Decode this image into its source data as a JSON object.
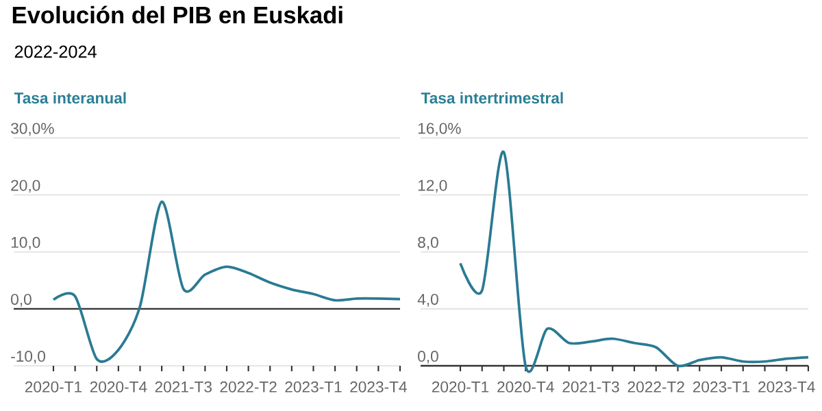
{
  "chart_data": [
    {
      "type": "line",
      "title": "Evolución del PIB en Euskadi",
      "subtitle": "2022-2024",
      "ylabel": "Tasa interanual",
      "categories": [
        "2020-T1",
        null,
        null,
        "2020-T4",
        null,
        null,
        "2021-T3",
        null,
        null,
        "2022-T2",
        null,
        null,
        "2023-T1",
        null,
        null,
        "2023-T4",
        null
      ],
      "series": [
        {
          "color": "#2a7a93",
          "values": [
            1.6,
            2.2,
            -8.8,
            -7.2,
            0.5,
            18.8,
            3.5,
            6.0,
            7.4,
            6.3,
            4.6,
            3.4,
            2.6,
            1.5,
            1.8,
            1.8,
            1.7
          ]
        }
      ],
      "ylim": [
        -10,
        30
      ],
      "yticks": [
        {
          "value": -10,
          "label": "-10,0"
        },
        {
          "value": 0,
          "label": "0,0"
        },
        {
          "value": 10,
          "label": "10,0"
        },
        {
          "value": 20,
          "label": "20,0"
        },
        {
          "value": 30,
          "label": "30,0%"
        }
      ],
      "ref_lines": [
        {
          "axis": "y",
          "value": 0,
          "color": "#333333"
        }
      ],
      "grid": "y"
    },
    {
      "type": "line",
      "ylabel": "Tasa intertrimestral",
      "categories": [
        "2020-T1",
        null,
        null,
        "2020-T4",
        null,
        null,
        "2021-T3",
        null,
        null,
        "2022-T2",
        null,
        null,
        "2023-T1",
        null,
        null,
        "2023-T4",
        null
      ],
      "series": [
        {
          "color": "#2a7a93",
          "values": [
            7.2,
            5.3,
            15.0,
            0.0,
            2.6,
            1.6,
            1.7,
            1.9,
            1.6,
            1.3,
            0.0,
            0.4,
            0.6,
            0.3,
            0.3,
            0.5,
            0.6
          ]
        }
      ],
      "ylim": [
        0,
        16
      ],
      "yticks": [
        {
          "value": 0,
          "label": "0,0"
        },
        {
          "value": 4,
          "label": "4,0"
        },
        {
          "value": 8,
          "label": "8,0"
        },
        {
          "value": 12,
          "label": "12,0"
        },
        {
          "value": 16,
          "label": "16,0%"
        }
      ],
      "grid": "y"
    }
  ]
}
